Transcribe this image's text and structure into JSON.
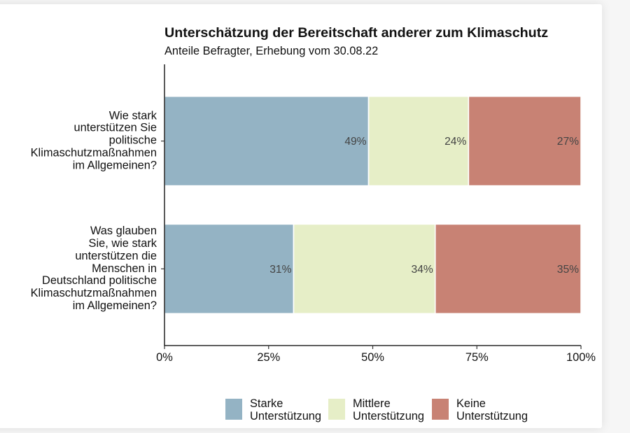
{
  "chart_data": {
    "type": "bar",
    "orientation": "horizontal",
    "stacked": true,
    "title": "Unterschätzung der Bereitschaft anderer zum Klimaschutz",
    "subtitle": "Anteile Befragter, Erhebung vom 30.08.22",
    "categories": [
      "Wie stark\nunterstützen Sie\npolitische\nKlimaschutzmaßnahmen\nim Allgemeinen?",
      "Was glauben\nSie, wie stark\nunterstützen die\nMenschen in\nDeutschland politische\nKlimaschutzmaßnahmen\nim Allgemeinen?"
    ],
    "series": [
      {
        "name": "Starke Unterstützung",
        "color": "#94b3c4",
        "values": [
          49,
          31
        ],
        "labels": [
          "49%",
          "31%"
        ]
      },
      {
        "name": "Mittlere Unterstützung",
        "color": "#e6eec7",
        "values": [
          24,
          34
        ],
        "labels": [
          "24%",
          "34%"
        ]
      },
      {
        "name": "Keine Unterstützung",
        "color": "#c88274",
        "values": [
          27,
          35
        ],
        "labels": [
          "27%",
          "35%"
        ]
      }
    ],
    "xlim": [
      0,
      100
    ],
    "x_ticks": [
      0,
      25,
      50,
      75,
      100
    ],
    "x_tick_labels": [
      "0%",
      "25%",
      "50%",
      "75%",
      "100%"
    ],
    "grid": false,
    "legend_position": "bottom"
  }
}
